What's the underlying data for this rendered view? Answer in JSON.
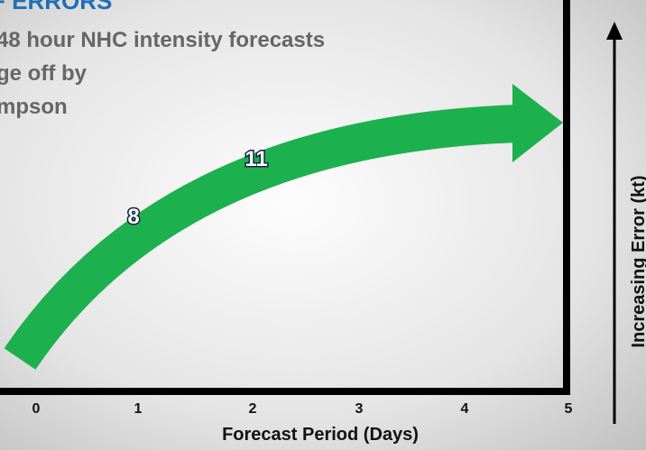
{
  "header": {
    "title": "F ERRORS",
    "lines": [
      "48 hour NHC intensity forecasts",
      "ge off by",
      "mpson"
    ]
  },
  "x_axis": {
    "ticks": [
      "0",
      "1",
      "2",
      "3",
      "4",
      "5"
    ],
    "label": "Forecast Period (Days)"
  },
  "y_axis": {
    "label": "Increasing Error (kt)"
  },
  "annotations": [
    "8",
    "11"
  ]
}
